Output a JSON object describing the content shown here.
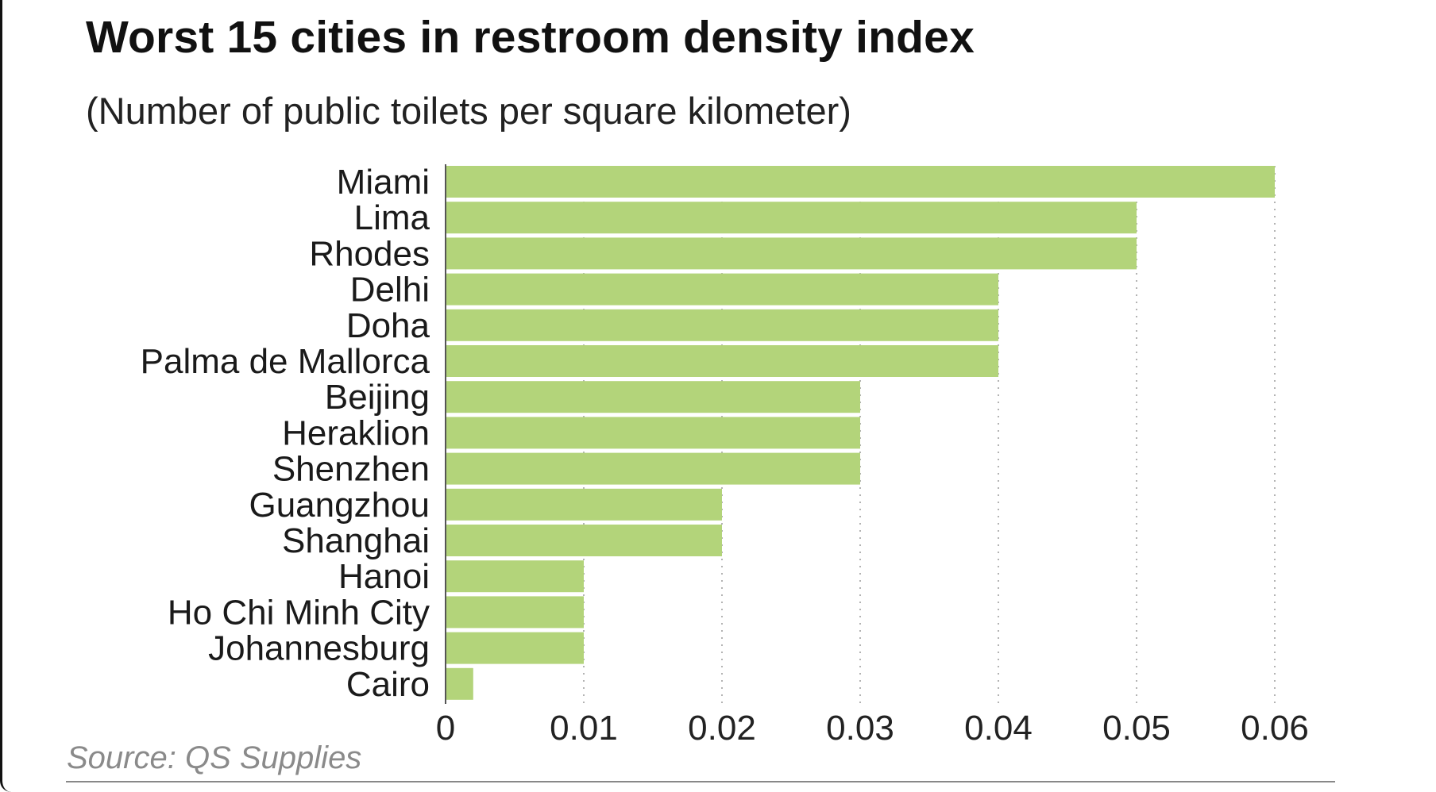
{
  "chart_data": {
    "type": "bar",
    "orientation": "horizontal",
    "title": "Worst 15 cities in restroom density index",
    "subtitle": "(Number of public toilets per square kilometer)",
    "categories": [
      "Miami",
      "Lima",
      "Rhodes",
      "Delhi",
      "Doha",
      "Palma de Mallorca",
      "Beijing",
      "Heraklion",
      "Shenzhen",
      "Guangzhou",
      "Shanghai",
      "Hanoi",
      "Ho Chi Minh City",
      "Johannesburg",
      "Cairo"
    ],
    "values": [
      0.06,
      0.05,
      0.05,
      0.04,
      0.04,
      0.04,
      0.03,
      0.03,
      0.03,
      0.02,
      0.02,
      0.01,
      0.01,
      0.01,
      0.002
    ],
    "xlabel": "",
    "ylabel": "",
    "xlim": [
      0,
      0.06
    ],
    "xticks": [
      "0",
      "0.01",
      "0.02",
      "0.03",
      "0.04",
      "0.05",
      "0.06"
    ],
    "grid": "vertical dotted",
    "bar_color": "#b3d47a",
    "source": "Source: QS Supplies"
  }
}
